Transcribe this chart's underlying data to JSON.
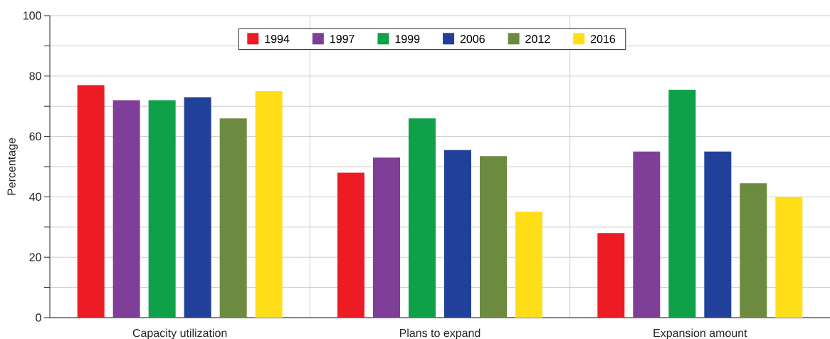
{
  "chart_data": {
    "type": "bar",
    "ylabel": "Percentage",
    "categories": [
      "Capacity utilization",
      "Plans to expand",
      "Expansion amount"
    ],
    "series": [
      {
        "name": "1994",
        "color": "#ed1c24",
        "values": [
          77,
          48,
          28
        ]
      },
      {
        "name": "1997",
        "color": "#7f3f98",
        "values": [
          72,
          53,
          55
        ]
      },
      {
        "name": "1999",
        "color": "#0fa14a",
        "values": [
          72,
          66,
          75.5
        ]
      },
      {
        "name": "2006",
        "color": "#21409a",
        "values": [
          73,
          55.5,
          55
        ]
      },
      {
        "name": "2012",
        "color": "#6c8a40",
        "values": [
          66,
          53.5,
          44.5
        ]
      },
      {
        "name": "2016",
        "color": "#ffde17",
        "values": [
          75,
          35,
          40
        ]
      }
    ],
    "ylim": [
      0,
      100
    ],
    "yticks": [
      0,
      {
        "value": 10,
        "label": null
      },
      20,
      {
        "value": 30,
        "label": null
      },
      40,
      {
        "value": 50,
        "label": null
      },
      60,
      {
        "value": 70,
        "label": null
      },
      80,
      {
        "value": 90,
        "label": null
      },
      100
    ],
    "grid": true,
    "legend": "top"
  }
}
